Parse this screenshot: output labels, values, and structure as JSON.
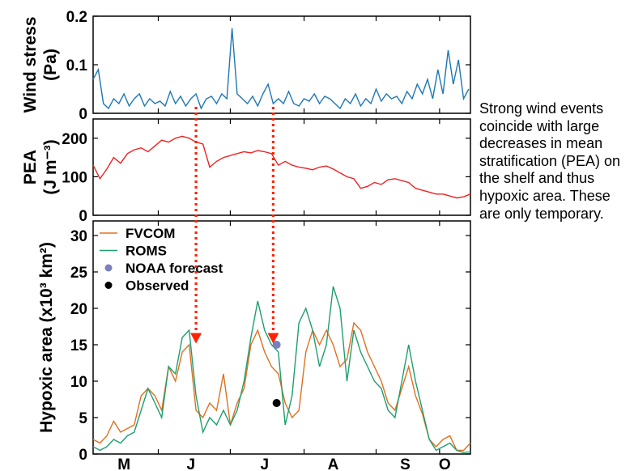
{
  "annotation": "Strong wind events coincide with large decreases in mean stratification (PEA) on the shelf and thus hypoxic area. These are only temporary.",
  "colors": {
    "wind": "#1f77b4",
    "pea": "#ee2222",
    "fvcom": "#e07020",
    "roms": "#1f9e6e",
    "noaa": "#7b7fbf",
    "observed": "#000000",
    "arrow": "#ff2200"
  },
  "chart_data": [
    {
      "type": "line",
      "ylabel_lines": [
        "Wind stress",
        "(Pa)"
      ],
      "ylim": [
        0,
        0.2
      ],
      "yticks": [
        "0",
        "0.1",
        "0.2"
      ],
      "x_range": [
        0,
        220
      ],
      "series": [
        {
          "x": [
            0,
            3,
            6,
            9,
            12,
            15,
            18,
            21,
            24,
            27,
            30,
            33,
            36,
            39,
            42,
            45,
            48,
            51,
            54,
            57,
            60,
            63,
            66,
            69,
            72,
            75,
            78,
            81,
            84,
            87,
            90,
            93,
            96,
            99,
            102,
            105,
            108,
            111,
            114,
            117,
            120,
            123,
            126,
            129,
            132,
            135,
            138,
            141,
            144,
            147,
            150,
            153,
            156,
            159,
            162,
            165,
            168,
            171,
            174,
            177,
            180,
            183,
            186,
            189,
            192,
            195,
            198,
            201,
            204,
            207,
            210,
            213,
            216,
            219
          ],
          "values": [
            0.07,
            0.09,
            0.02,
            0.01,
            0.03,
            0.02,
            0.04,
            0.015,
            0.03,
            0.04,
            0.015,
            0.03,
            0.02,
            0.025,
            0.015,
            0.045,
            0.02,
            0.035,
            0.015,
            0.03,
            0.04,
            0.01,
            0.03,
            0.035,
            0.02,
            0.04,
            0.03,
            0.175,
            0.04,
            0.03,
            0.02,
            0.035,
            0.015,
            0.04,
            0.06,
            0.02,
            0.03,
            0.02,
            0.045,
            0.02,
            0.015,
            0.03,
            0.025,
            0.04,
            0.02,
            0.035,
            0.03,
            0.02,
            0.01,
            0.03,
            0.02,
            0.04,
            0.015,
            0.03,
            0.02,
            0.05,
            0.025,
            0.04,
            0.03,
            0.035,
            0.02,
            0.045,
            0.03,
            0.06,
            0.04,
            0.07,
            0.03,
            0.09,
            0.04,
            0.13,
            0.06,
            0.11,
            0.03,
            0.05
          ]
        }
      ]
    },
    {
      "type": "line",
      "ylabel_lines": [
        "PEA",
        "(J m⁻³)"
      ],
      "ylim": [
        0,
        250
      ],
      "yticks": [
        "0",
        "100",
        "200"
      ],
      "x_range": [
        0,
        220
      ],
      "series": [
        {
          "x": [
            0,
            4,
            8,
            12,
            16,
            20,
            24,
            28,
            32,
            36,
            40,
            44,
            48,
            52,
            56,
            60,
            64,
            68,
            72,
            76,
            80,
            84,
            88,
            92,
            96,
            100,
            104,
            108,
            112,
            116,
            120,
            124,
            128,
            132,
            136,
            140,
            144,
            148,
            152,
            156,
            160,
            164,
            168,
            172,
            176,
            180,
            184,
            188,
            192,
            196,
            200,
            204,
            208,
            212,
            216,
            220
          ],
          "values": [
            130,
            95,
            120,
            150,
            135,
            160,
            170,
            175,
            165,
            180,
            195,
            190,
            200,
            205,
            200,
            190,
            185,
            125,
            140,
            150,
            155,
            160,
            165,
            162,
            168,
            165,
            160,
            130,
            140,
            130,
            125,
            122,
            118,
            125,
            128,
            120,
            110,
            100,
            95,
            70,
            75,
            85,
            80,
            92,
            95,
            90,
            85,
            70,
            65,
            60,
            55,
            55,
            50,
            45,
            48,
            55
          ]
        }
      ]
    },
    {
      "type": "line",
      "ylabel": "Hypoxic area (x10³ km²)",
      "ylim": [
        0,
        32
      ],
      "yticks": [
        "0",
        "5",
        "10",
        "15",
        "20",
        "25",
        "30"
      ],
      "x_range": [
        0,
        220
      ],
      "x_tick_labels": [
        "M",
        "J",
        "J",
        "A",
        "S",
        "O"
      ],
      "legend": [
        "FVCOM",
        "ROMS",
        "NOAA forecast",
        "Observed"
      ],
      "series": [
        {
          "name": "FVCOM",
          "x": [
            0,
            4,
            8,
            12,
            16,
            20,
            24,
            28,
            32,
            36,
            40,
            44,
            48,
            52,
            56,
            60,
            64,
            68,
            72,
            76,
            80,
            84,
            88,
            92,
            96,
            100,
            104,
            108,
            112,
            116,
            120,
            124,
            128,
            132,
            136,
            140,
            144,
            148,
            152,
            156,
            160,
            164,
            168,
            172,
            176,
            180,
            184,
            188,
            192,
            196,
            200,
            204,
            208,
            212,
            216,
            220
          ],
          "values": [
            2,
            1.5,
            2.5,
            4.5,
            3,
            3.5,
            4,
            8,
            9,
            8,
            6,
            12,
            10,
            14,
            15,
            6,
            5,
            7,
            6,
            11,
            4,
            7,
            9,
            15,
            17,
            14,
            12,
            11,
            7,
            5,
            6,
            14,
            17,
            15,
            17,
            15,
            12,
            13,
            18,
            17,
            14,
            12,
            10,
            7,
            6,
            9,
            12,
            8,
            5.5,
            2,
            1,
            2,
            2.5,
            0.5,
            0.5,
            1.5
          ]
        },
        {
          "name": "ROMS",
          "x": [
            0,
            4,
            8,
            12,
            16,
            20,
            24,
            28,
            32,
            36,
            40,
            44,
            48,
            52,
            56,
            60,
            64,
            68,
            72,
            76,
            80,
            84,
            88,
            92,
            96,
            100,
            104,
            108,
            112,
            116,
            120,
            124,
            128,
            132,
            136,
            140,
            144,
            148,
            152,
            156,
            160,
            164,
            168,
            172,
            176,
            180,
            184,
            188,
            192,
            196,
            200,
            204,
            208,
            212,
            216,
            220
          ],
          "values": [
            1,
            0.5,
            1,
            2,
            1.5,
            2.5,
            3,
            6,
            9,
            7,
            5,
            12,
            11,
            16,
            17,
            8,
            3,
            5,
            4,
            6,
            4,
            6,
            10,
            16,
            21,
            17,
            15,
            14,
            4,
            8,
            18,
            20,
            17,
            12,
            15,
            23,
            20,
            10,
            17,
            14,
            12,
            10,
            9,
            6,
            5,
            10,
            15,
            10,
            6,
            2,
            0.5,
            1,
            1.5,
            0.5,
            0.2,
            0.3
          ]
        }
      ],
      "points": [
        {
          "name": "NOAA forecast",
          "x": 107,
          "value": 15
        },
        {
          "name": "Observed",
          "x": 107,
          "value": 7
        }
      ]
    }
  ],
  "arrows": [
    {
      "x": 60,
      "from": "wind",
      "to_value": 15.5
    },
    {
      "x": 105,
      "from": "wind",
      "to_value": 15.5
    }
  ]
}
